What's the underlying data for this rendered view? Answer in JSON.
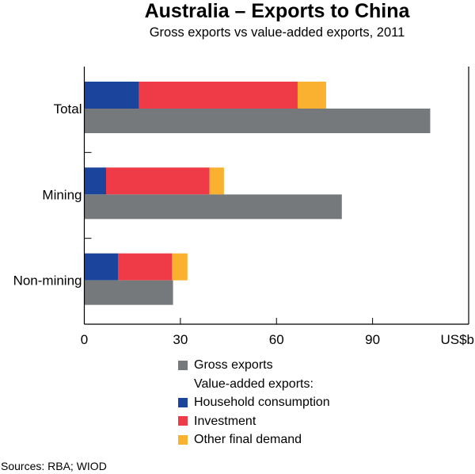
{
  "chart_data": {
    "type": "bar",
    "orientation": "horizontal",
    "title": "Australia – Exports to China",
    "subtitle": "Gross exports vs value-added exports, 2011",
    "categories": [
      "Total",
      "Mining",
      "Non-mining"
    ],
    "xlim": [
      0,
      120
    ],
    "xticks": [
      0,
      30,
      60,
      90
    ],
    "xunit": "US$b",
    "gross_exports": {
      "name": "Gross exports",
      "color": "#76797b",
      "values": [
        108.0,
        80.4,
        27.7
      ]
    },
    "value_added_heading": "Value-added exports:",
    "value_added_stacked": [
      {
        "name": "Household consumption",
        "color": "#1b449c",
        "values": [
          17.1,
          6.8,
          10.5
        ]
      },
      {
        "name": "Investment",
        "color": "#ef3a47",
        "values": [
          49.5,
          32.3,
          16.9
        ]
      },
      {
        "name": "Other final demand",
        "color": "#fbb130",
        "values": [
          8.9,
          4.5,
          4.8
        ]
      }
    ],
    "grid": false,
    "legend_position": "bottom"
  },
  "footer": {
    "sources": "Sources:  RBA; WIOD"
  }
}
